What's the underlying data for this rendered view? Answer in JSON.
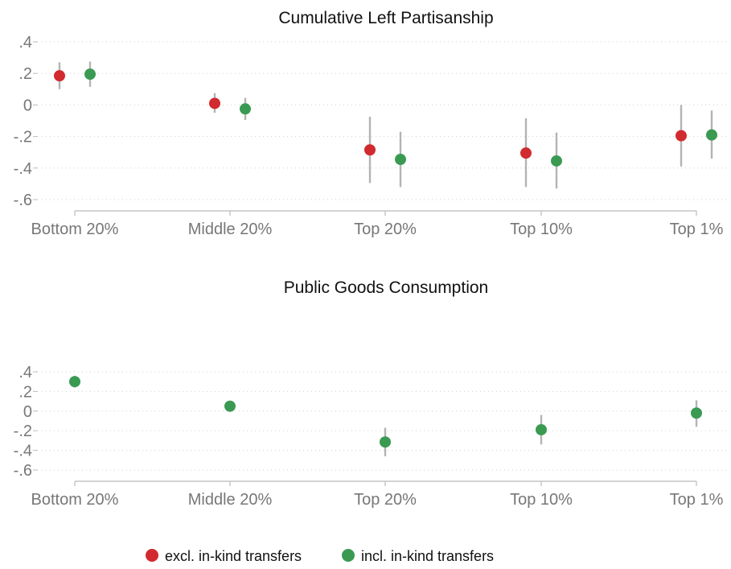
{
  "chart_data": [
    {
      "type": "scatter",
      "title": "Cumulative Left Partisanship",
      "categories": [
        "Bottom 20%",
        "Middle 20%",
        "Top 20%",
        "Top 10%",
        "Top 1%"
      ],
      "ylim": [
        -0.6,
        0.4
      ],
      "yticks": [
        0.4,
        0.2,
        0,
        -0.2,
        -0.4,
        -0.6
      ],
      "ytick_labels": [
        ".4",
        ".2",
        "0",
        "-.2",
        "-.4",
        "-.6"
      ],
      "grid": true,
      "series": [
        {
          "name": "excl. in-kind transfers",
          "color": "#d12a2f",
          "values": [
            0.185,
            0.01,
            -0.285,
            -0.305,
            -0.195
          ],
          "ci_low": [
            0.1,
            -0.05,
            -0.495,
            -0.52,
            -0.39
          ],
          "ci_high": [
            0.27,
            0.075,
            -0.075,
            -0.085,
            0.0
          ]
        },
        {
          "name": "incl. in-kind transfers",
          "color": "#3a9a52",
          "values": [
            0.195,
            -0.025,
            -0.345,
            -0.355,
            -0.19
          ],
          "ci_low": [
            0.115,
            -0.095,
            -0.52,
            -0.53,
            -0.34
          ],
          "ci_high": [
            0.275,
            0.045,
            -0.17,
            -0.175,
            -0.035
          ]
        }
      ]
    },
    {
      "type": "scatter",
      "title": "Public Goods Consumption",
      "categories": [
        "Bottom 20%",
        "Middle 20%",
        "Top 20%",
        "Top 10%",
        "Top 1%"
      ],
      "ylim": [
        -0.6,
        0.4
      ],
      "yticks": [
        0.4,
        0.2,
        0,
        -0.2,
        -0.4,
        -0.6
      ],
      "ytick_labels": [
        ".4",
        ".2",
        "0",
        "-.2",
        "-.4",
        "-.6"
      ],
      "grid": true,
      "series": [
        {
          "name": "incl. in-kind transfers",
          "color": "#3a9a52",
          "values": [
            0.3,
            0.05,
            -0.315,
            -0.19,
            -0.02
          ],
          "ci_low": [
            0.24,
            0.01,
            -0.46,
            -0.34,
            -0.16
          ],
          "ci_high": [
            0.36,
            0.09,
            -0.17,
            -0.04,
            0.11
          ]
        }
      ]
    }
  ],
  "legend": {
    "placement": "bottom",
    "items": [
      {
        "label": "excl. in-kind transfers",
        "color": "#d12a2f"
      },
      {
        "label": "incl. in-kind transfers",
        "color": "#3a9a52"
      }
    ]
  }
}
